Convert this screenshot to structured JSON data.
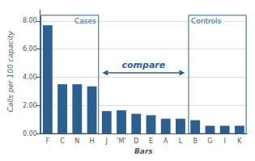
{
  "chart_data": {
    "type": "bar",
    "categories": [
      "F",
      "C",
      "N",
      "H",
      "J",
      "'M'",
      "D",
      "E",
      "A",
      "L",
      "B",
      "G",
      "I",
      "K"
    ],
    "values": [
      7.7,
      3.5,
      3.5,
      3.35,
      1.6,
      1.65,
      1.4,
      1.3,
      1.05,
      1.05,
      0.95,
      0.55,
      0.55,
      0.55
    ],
    "color": "#2a5f8f",
    "xlabel": "Bars",
    "ylabel": "Calls per 100 capacity",
    "ylim": [
      0,
      8.8
    ],
    "yticks": [
      {
        "value": 0,
        "label": "0.00"
      },
      {
        "value": 2,
        "label": "2.00"
      },
      {
        "value": 4,
        "label": "4.00"
      },
      {
        "value": 6,
        "label": "6.00"
      },
      {
        "value": 8,
        "label": "8.00"
      }
    ],
    "grid": true,
    "annotations": [
      {
        "text": "Cases",
        "box": [
          "F",
          "H"
        ]
      },
      {
        "text": "Controls",
        "box": [
          "B",
          "K"
        ]
      },
      {
        "text": "compare",
        "arrow": [
          "J",
          "L"
        ]
      }
    ]
  }
}
